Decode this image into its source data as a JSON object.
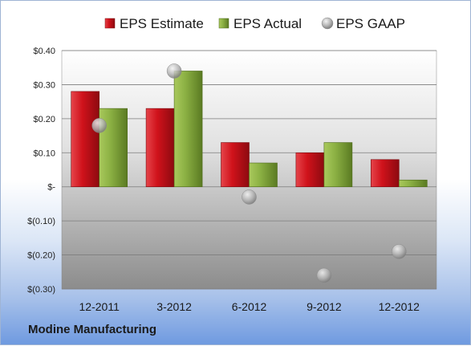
{
  "company_label": "Modine Manufacturing",
  "chart_data": {
    "type": "bar",
    "categories": [
      "12-2011",
      "3-2012",
      "6-2012",
      "9-2012",
      "12-2012"
    ],
    "series": [
      {
        "name": "EPS Estimate",
        "type": "bar",
        "color": "#c0141c",
        "values": [
          0.28,
          0.23,
          0.13,
          0.1,
          0.08
        ]
      },
      {
        "name": "EPS Actual",
        "type": "bar",
        "color": "#7ea23a",
        "values": [
          0.23,
          0.34,
          0.07,
          0.13,
          0.02
        ]
      },
      {
        "name": "EPS GAAP",
        "type": "scatter",
        "color": "#a9a9a9",
        "values": [
          0.18,
          0.34,
          -0.03,
          -0.26,
          -0.19
        ]
      }
    ],
    "ylim": [
      -0.3,
      0.4
    ],
    "yticks": [
      0.4,
      0.3,
      0.2,
      0.1,
      0.0,
      -0.1,
      -0.2,
      -0.3
    ],
    "ytick_labels": [
      "$0.40",
      "$0.30",
      "$0.20",
      "$0.10",
      "$-",
      "$(0.10)",
      "$(0.20)",
      "$(0.30)"
    ],
    "grid": true,
    "legend_position": "top"
  }
}
